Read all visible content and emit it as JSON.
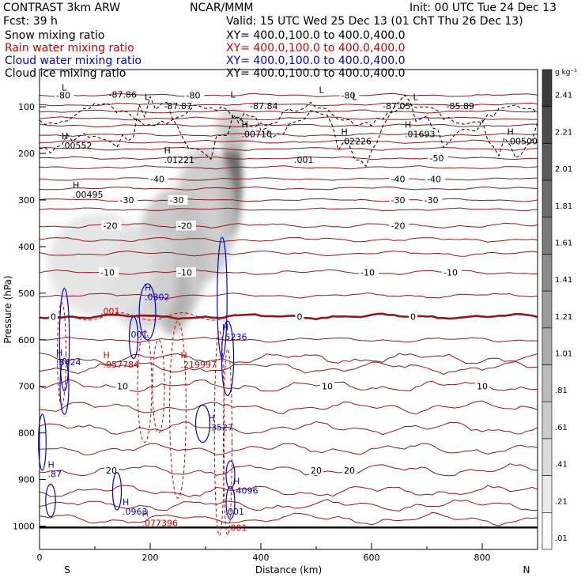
{
  "header": {
    "left_line1": "CONTRAST  3km ARW",
    "left_line2": "Fcst:    39 h",
    "center_line1": "NCAR/MMM",
    "init": "Init: 00 UTC Tue 24 Dec 13",
    "valid": "Valid: 15 UTC Wed 25 Dec 13 (01 ChT Thu 26 Dec 13)",
    "fields": [
      {
        "label": "Snow mixing ratio",
        "xy": "XY= 400.0,100.0 to 400.0,400.0",
        "color": "#000000"
      },
      {
        "label": "Rain water mixing ratio",
        "xy": "XY= 400.0,100.0 to 400.0,400.0",
        "color": "#cc0000"
      },
      {
        "label": "Cloud water mixing ratio",
        "xy": "XY= 400.0,100.0 to 400.0,400.0",
        "color": "#0000cc"
      },
      {
        "label": "Cloud ice mixing ratio",
        "xy": "XY= 400.0,100.0 to 400.0,400.0",
        "color": "#000000"
      }
    ]
  },
  "chart_data": {
    "type": "heatmap",
    "xlabel": "Distance (km)",
    "ylabel": "Pressure (hPa)",
    "xlim": [
      0,
      900
    ],
    "ylim": [
      1050,
      20
    ],
    "x_ticks": [
      0,
      200,
      400,
      600,
      800
    ],
    "y_ticks": [
      100,
      200,
      300,
      400,
      500,
      600,
      700,
      800,
      900,
      1000
    ],
    "end_labels": {
      "left": "S",
      "right": "N"
    },
    "colorbar": {
      "unit": "g kg⁻¹",
      "levels": [
        2.41,
        2.21,
        2.01,
        1.81,
        1.61,
        1.41,
        1.21,
        1.01,
        0.81,
        0.61,
        0.41,
        0.21,
        0.01
      ],
      "level_labels": [
        "2.41",
        "2.21",
        "2.01",
        "1.81",
        "1.61",
        "1.41",
        "1.21",
        "1.01",
        ".81",
        ".61",
        ".41",
        ".21",
        ".01"
      ]
    },
    "shading_blobs": [
      {
        "x": 350,
        "p": 220,
        "sx": 8,
        "sp": 60,
        "v": 2.0
      },
      {
        "x": 345,
        "p": 280,
        "sx": 12,
        "sp": 60,
        "v": 1.4
      },
      {
        "x": 300,
        "p": 330,
        "sx": 35,
        "sp": 90,
        "v": 0.5
      },
      {
        "x": 240,
        "p": 420,
        "sx": 40,
        "sp": 90,
        "v": 0.55
      },
      {
        "x": 240,
        "p": 510,
        "sx": 20,
        "sp": 50,
        "v": 0.75
      },
      {
        "x": 185,
        "p": 470,
        "sx": 40,
        "sp": 70,
        "v": 0.35
      },
      {
        "x": 110,
        "p": 440,
        "sx": 60,
        "sp": 70,
        "v": 0.2
      },
      {
        "x": 350,
        "p": 150,
        "sx": 20,
        "sp": 30,
        "v": 0.4
      }
    ],
    "temperature_contours": [
      {
        "level": 0,
        "p": 550,
        "labels": [
          {
            "x": 20,
            "text": "0"
          },
          {
            "x": 465,
            "text": "0"
          },
          {
            "x": 670,
            "text": "0"
          }
        ],
        "bold": true
      },
      {
        "level": -10,
        "p": 455,
        "labels": [
          {
            "x": 110,
            "text": "-10"
          },
          {
            "x": 250,
            "text": "-10"
          },
          {
            "x": 580,
            "text": "-10"
          },
          {
            "x": 730,
            "text": "-10"
          }
        ]
      },
      {
        "level": -20,
        "p": 355,
        "labels": [
          {
            "x": 115,
            "text": "-20"
          },
          {
            "x": 250,
            "text": "-20"
          },
          {
            "x": 635,
            "text": "-20"
          }
        ]
      },
      {
        "level": -30,
        "p": 300,
        "labels": [
          {
            "x": 145,
            "text": "-30"
          },
          {
            "x": 235,
            "text": "-30"
          },
          {
            "x": 635,
            "text": "-30"
          },
          {
            "x": 695,
            "text": "-30"
          }
        ]
      },
      {
        "level": -40,
        "p": 255,
        "labels": [
          {
            "x": 200,
            "text": "-40"
          },
          {
            "x": 635,
            "text": "-40"
          },
          {
            "x": 700,
            "text": "-40"
          }
        ]
      },
      {
        "level": -50,
        "p": 210,
        "labels": [
          {
            "x": 705,
            "text": "-50"
          }
        ]
      },
      {
        "level": -80,
        "p": 75,
        "labels": [
          {
            "x": 30,
            "text": "-80"
          },
          {
            "x": 265,
            "text": "-80"
          },
          {
            "x": 545,
            "text": "-80"
          }
        ]
      },
      {
        "level": 10,
        "p": 700,
        "labels": [
          {
            "x": 140,
            "text": "10"
          },
          {
            "x": 510,
            "text": "10"
          },
          {
            "x": 790,
            "text": "10"
          }
        ]
      },
      {
        "level": 20,
        "p": 880,
        "labels": [
          {
            "x": 120,
            "text": "20"
          },
          {
            "x": 490,
            "text": "20"
          },
          {
            "x": 550,
            "text": "20"
          }
        ]
      }
    ],
    "extra_isotherm_pressures": [
      95,
      110,
      125,
      140,
      160,
      175,
      190,
      230,
      275,
      320,
      385,
      415,
      505,
      600,
      640,
      660,
      745,
      790,
      835,
      925,
      955,
      985
    ],
    "snow_maxima": [
      {
        "x": 40,
        "p": 190,
        "text": ".00552"
      },
      {
        "x": 60,
        "p": 295,
        "text": ".00495"
      },
      {
        "x": 225,
        "p": 220,
        "text": ".01221"
      },
      {
        "x": 365,
        "p": 165,
        "text": ".00710"
      },
      {
        "x": 545,
        "p": 180,
        "text": ".02226"
      },
      {
        "x": 660,
        "p": 165,
        "text": ".01693"
      },
      {
        "x": 845,
        "p": 180,
        "text": ".00500"
      }
    ],
    "ice_minima_labels": [
      {
        "x": 125,
        "p": 80,
        "text": "-87.86"
      },
      {
        "x": 225,
        "p": 105,
        "text": "-87.87"
      },
      {
        "x": 380,
        "p": 105,
        "text": "-87.84"
      },
      {
        "x": 620,
        "p": 105,
        "text": "-87.05"
      },
      {
        "x": 735,
        "p": 105,
        "text": "-85.89"
      },
      {
        "x": 460,
        "p": 220,
        "text": ".001"
      }
    ],
    "rain_maxima": [
      {
        "x": 115,
        "p": 660,
        "text": ".057784"
      },
      {
        "x": 255,
        "p": 660,
        "text": ".219997"
      },
      {
        "x": 185,
        "p": 1000,
        "text": ".077396"
      },
      {
        "x": 340,
        "p": 1010,
        "text": ".001"
      },
      {
        "x": 110,
        "p": 545,
        "text": ".001"
      }
    ],
    "cloud_water_maxima": [
      {
        "x": 30,
        "p": 655,
        "text": ".8424"
      },
      {
        "x": 190,
        "p": 515,
        "text": ".0302"
      },
      {
        "x": 160,
        "p": 595,
        "text": ".001"
      },
      {
        "x": 330,
        "p": 600,
        "text": ".5236"
      },
      {
        "x": 305,
        "p": 795,
        "text": ".3527"
      },
      {
        "x": 350,
        "p": 930,
        "text": ".4096"
      },
      {
        "x": 335,
        "p": 975,
        "text": ".001"
      },
      {
        "x": 150,
        "p": 975,
        "text": ".0963"
      },
      {
        "x": 15,
        "p": 895,
        "text": ".87"
      }
    ],
    "l_marks": [
      {
        "x": 40,
        "p": 65
      },
      {
        "x": 190,
        "p": 85
      },
      {
        "x": 345,
        "p": 80
      },
      {
        "x": 505,
        "p": 70
      },
      {
        "x": 565,
        "p": 85
      },
      {
        "x": 675,
        "p": 85
      }
    ]
  }
}
